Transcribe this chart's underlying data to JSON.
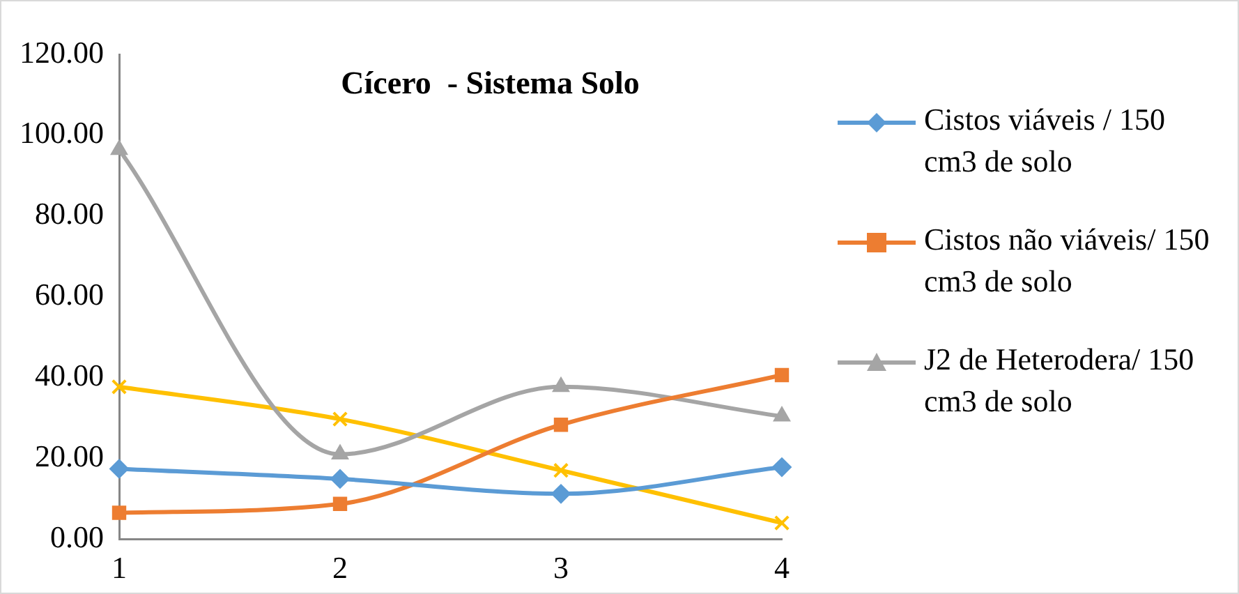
{
  "chart_data": {
    "type": "line",
    "title": "Cícero  - Sistema Solo",
    "categories": [
      "1",
      "2",
      "3",
      "4"
    ],
    "series": [
      {
        "name": "Cistos viáveis / 150 cm3 de solo",
        "color": "#5b9bd5",
        "marker": "diamond",
        "values": [
          17.4,
          14.9,
          11.2,
          17.8
        ]
      },
      {
        "name": "Cistos não viáveis/ 150 cm3 de solo",
        "color": "#ed7d31",
        "marker": "square",
        "values": [
          6.5,
          8.7,
          28.3,
          40.6
        ]
      },
      {
        "name": "J2 de Heterodera/ 150 cm3 de solo",
        "color": "#a5a5a5",
        "marker": "triangle",
        "values": [
          96.4,
          21,
          37.7,
          30.4
        ]
      },
      {
        "color": "#ffc000",
        "marker": "cross",
        "values": [
          37.7,
          29.7,
          17,
          4
        ]
      }
    ],
    "ylim": [
      0,
      120
    ],
    "yticks": [
      {
        "value": 0,
        "label": "0.00"
      },
      {
        "value": 20,
        "label": "20.00"
      },
      {
        "value": 40,
        "label": "40.00"
      },
      {
        "value": 60,
        "label": "60.00"
      },
      {
        "value": 80,
        "label": "80.00"
      },
      {
        "value": 100,
        "label": "100.00"
      },
      {
        "value": 120,
        "label": "120.00"
      }
    ],
    "grid": false,
    "legend": "right"
  }
}
